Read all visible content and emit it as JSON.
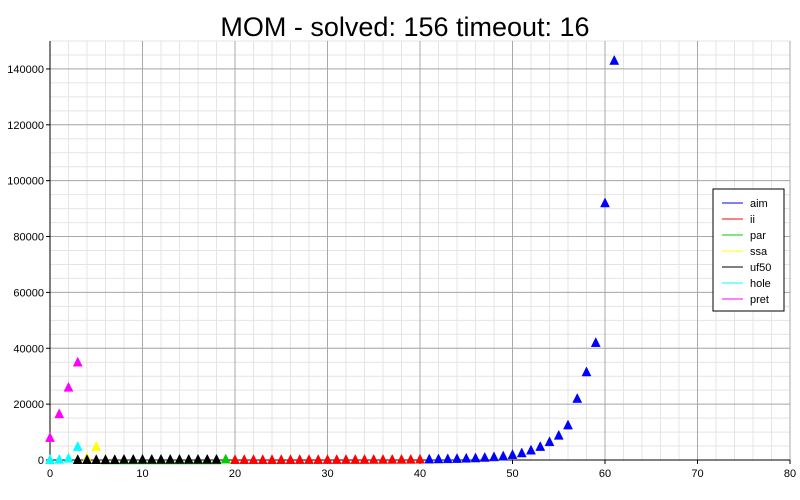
{
  "chart_data": {
    "type": "scatter",
    "title": "MOM - solved: 156  timeout: 16",
    "xlabel": "",
    "ylabel": "",
    "xlim": [
      0,
      80
    ],
    "ylim": [
      0,
      150000
    ],
    "x_ticks": [
      "0",
      "10",
      "20",
      "30",
      "40",
      "50",
      "60",
      "70",
      "80"
    ],
    "y_ticks": [
      "0",
      "20000",
      "40000",
      "60000",
      "80000",
      "100000",
      "120000",
      "140000"
    ],
    "grid": true,
    "legend_position": "right",
    "marker": "triangle",
    "series": [
      {
        "name": "aim",
        "color": "#0000ff",
        "x": [
          41,
          42,
          43,
          44,
          45,
          46,
          47,
          48,
          49,
          50,
          51,
          52,
          53,
          54,
          55,
          56,
          57,
          58,
          59,
          60,
          61
        ],
        "y": [
          300,
          350,
          400,
          500,
          600,
          700,
          900,
          1100,
          1400,
          1900,
          2500,
          3500,
          4800,
          6500,
          8800,
          12500,
          22000,
          31500,
          42000,
          92000,
          143000
        ]
      },
      {
        "name": "ii",
        "color": "#ff0000",
        "x": [
          20,
          21,
          22,
          23,
          24,
          25,
          26,
          27,
          28,
          29,
          30,
          31,
          32,
          33,
          34,
          35,
          36,
          37,
          38,
          39,
          40
        ],
        "y": [
          100,
          100,
          100,
          100,
          100,
          100,
          100,
          120,
          120,
          120,
          130,
          130,
          140,
          140,
          150,
          160,
          170,
          180,
          190,
          200,
          250
        ]
      },
      {
        "name": "par",
        "color": "#00cc00",
        "x": [
          6,
          7,
          8,
          9,
          10,
          11,
          12,
          13,
          14,
          15,
          16,
          17,
          18,
          19
        ],
        "y": [
          0,
          0,
          0,
          0,
          0,
          0,
          0,
          0,
          0,
          0,
          0,
          0,
          0,
          300
        ]
      },
      {
        "name": "ssa",
        "color": "#ffff00",
        "x": [
          4,
          5
        ],
        "y": [
          800,
          4800
        ]
      },
      {
        "name": "uf50",
        "color": "#000000",
        "x": [
          3,
          4,
          5,
          6,
          7,
          8,
          9,
          10,
          11,
          12,
          13,
          14,
          15,
          16,
          17,
          18
        ],
        "y": [
          100,
          100,
          100,
          100,
          100,
          200,
          200,
          200,
          200,
          200,
          200,
          200,
          200,
          200,
          200,
          200
        ]
      },
      {
        "name": "hole",
        "color": "#00ffff",
        "x": [
          0,
          1,
          2,
          3
        ],
        "y": [
          100,
          200,
          600,
          4800
        ]
      },
      {
        "name": "pret",
        "color": "#ff00ff",
        "x": [
          0,
          1,
          2,
          3
        ],
        "y": [
          8000,
          16500,
          26000,
          35000
        ]
      }
    ]
  }
}
